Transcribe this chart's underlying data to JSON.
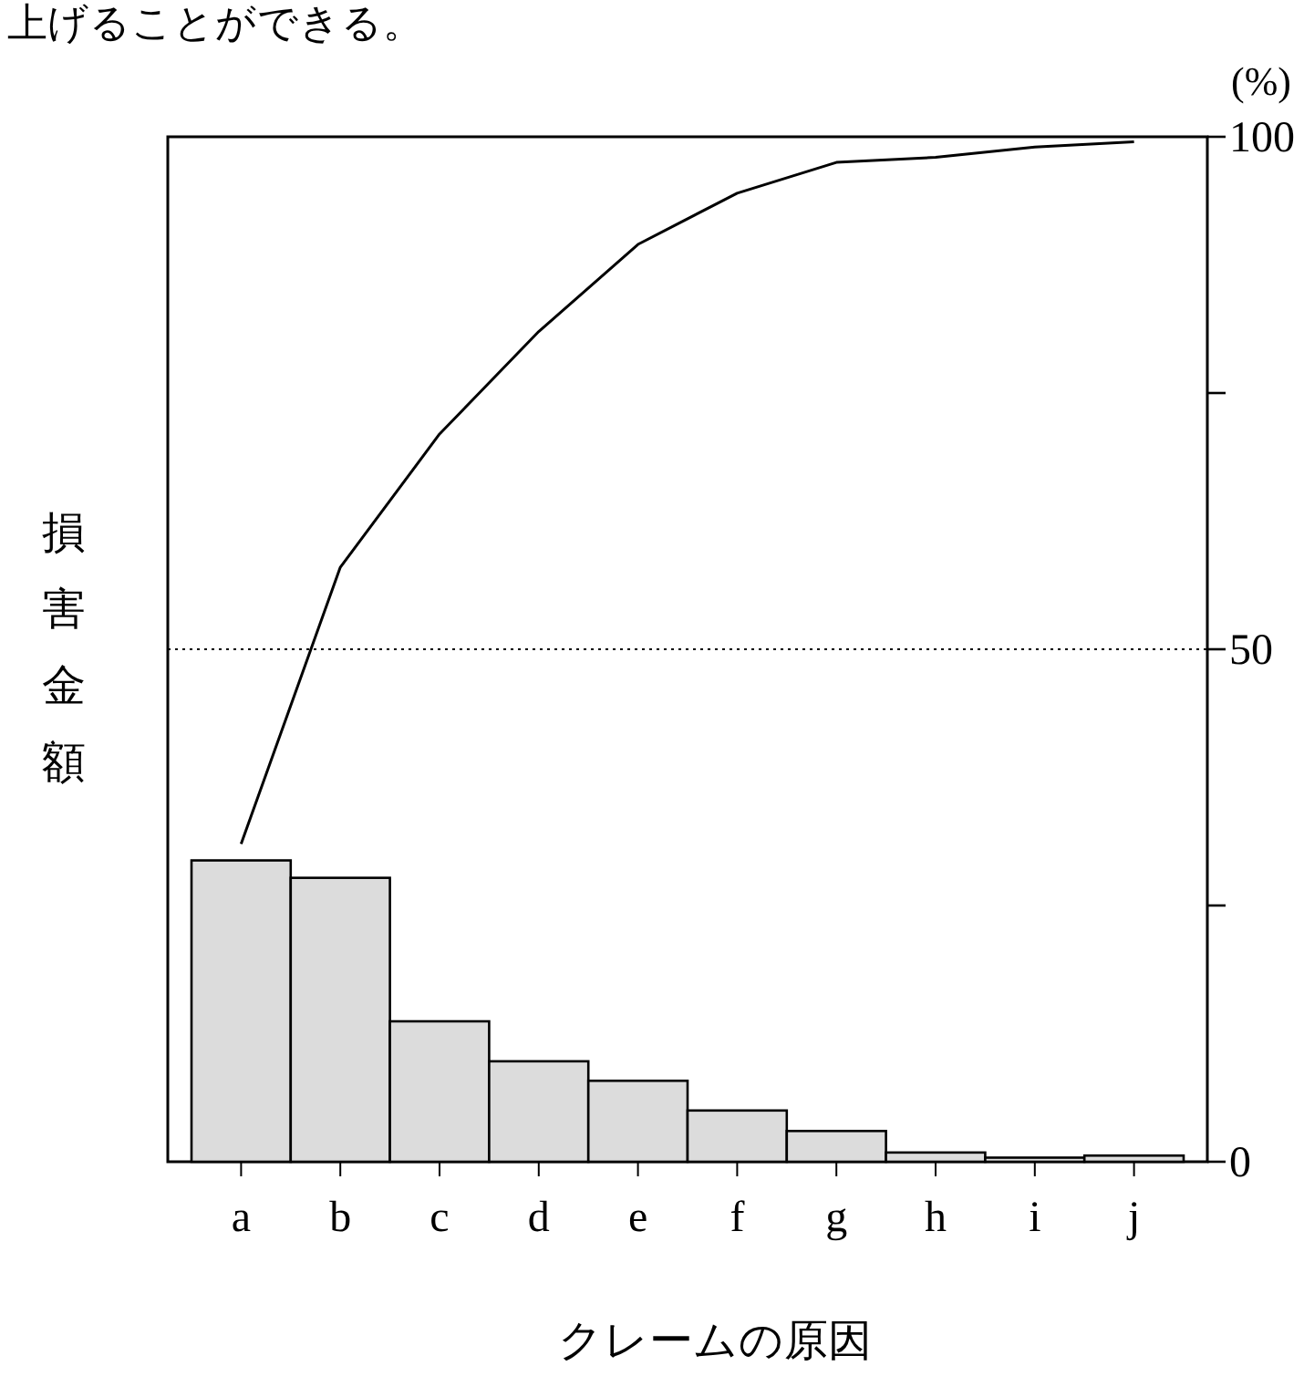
{
  "chart_data": {
    "type": "bar",
    "annotations": [
      "上げることができる。"
    ],
    "xlabel": "クレームの原因",
    "ylabel": "損害金額",
    "y2label": "(%)",
    "categories": [
      "a",
      "b",
      "c",
      "d",
      "e",
      "f",
      "g",
      "h",
      "i",
      "j"
    ],
    "series": [
      {
        "axis": "y2",
        "color": "#dcdcdc",
        "values": [
          29.4,
          27.7,
          13.7,
          9.8,
          7.9,
          5.0,
          3.0,
          0.9,
          0.4,
          0.6
        ]
      },
      {
        "type": "line",
        "axis": "y2",
        "color": "#000000",
        "line_style": "solid",
        "values": [
          31,
          58,
          71,
          81,
          89.5,
          94.5,
          97.5,
          98,
          99,
          99.5
        ]
      }
    ],
    "y2lim": [
      0,
      100
    ],
    "y2ticks": [
      0,
      {
        "value": 25,
        "label": null
      },
      50,
      {
        "value": 75,
        "label": null
      },
      100
    ],
    "ref_lines": [
      {
        "axis": "y2",
        "value": 50,
        "line_style": "dotted",
        "color": "#000000"
      }
    ]
  }
}
